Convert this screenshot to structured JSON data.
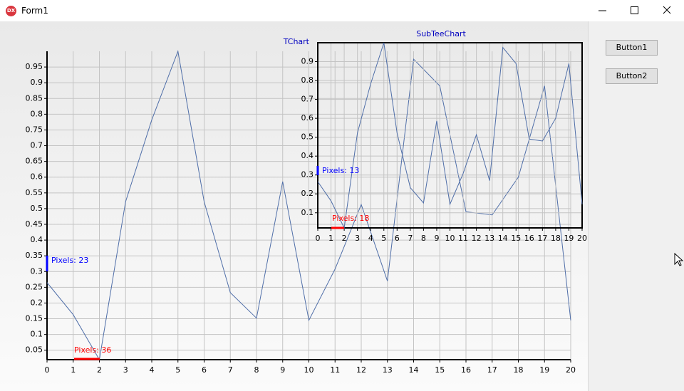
{
  "window": {
    "title": "Form1"
  },
  "buttons": [
    "Button1",
    "Button2"
  ],
  "chart_data": [
    {
      "type": "line",
      "title": "TChart",
      "x": [
        0,
        1,
        2,
        3,
        4,
        5,
        6,
        7,
        8,
        9,
        10,
        11,
        12,
        13,
        14,
        15,
        16,
        17,
        18,
        19,
        20
      ],
      "series": [
        {
          "color": "#4f6ea8",
          "values": [
            0.265,
            0.163,
            0.02,
            0.522,
            0.782,
            1.0,
            0.522,
            0.233,
            0.152,
            0.586,
            0.145,
            0.308,
            0.513,
            0.27,
            0.975,
            0.89,
            0.49,
            0.48,
            0.6,
            0.89,
            0.145
          ]
        }
      ],
      "xlim": [
        0,
        20
      ],
      "ylim": [
        0.02,
        1.0
      ],
      "xticks": [
        0,
        1,
        2,
        3,
        4,
        5,
        6,
        7,
        8,
        9,
        10,
        11,
        12,
        13,
        14,
        15,
        16,
        17,
        18,
        19,
        20
      ],
      "yticks": [
        0.05,
        0.1,
        0.15,
        0.2,
        0.25,
        0.3,
        0.35,
        0.4,
        0.45,
        0.5,
        0.55,
        0.6,
        0.65,
        0.7,
        0.75,
        0.8,
        0.85,
        0.9,
        0.95
      ],
      "grid": true,
      "annotations": [
        {
          "text": "Pixels: 23",
          "color": "#0000ff"
        },
        {
          "text": "Pixels: 36",
          "color": "#ff0000"
        }
      ]
    },
    {
      "type": "line",
      "title": "SubTeeChart",
      "x": [
        0,
        1,
        2,
        3,
        4,
        5,
        6,
        7,
        8,
        9,
        10,
        11,
        12,
        13,
        14,
        15,
        16,
        17,
        18,
        19,
        20
      ],
      "series": [
        {
          "color": "#4f6ea8",
          "values": [
            0.265,
            0.163,
            0.02,
            0.522,
            0.782,
            1.0,
            0.522,
            0.233,
            0.152,
            0.586,
            0.145,
            0.308,
            0.513,
            0.27,
            0.975,
            0.89,
            0.49,
            0.48,
            0.6,
            0.89,
            0.145
          ]
        }
      ],
      "xlim": [
        0,
        20
      ],
      "ylim": [
        0.02,
        1.0
      ],
      "xticks": [
        0,
        1,
        2,
        3,
        4,
        5,
        6,
        7,
        8,
        9,
        10,
        11,
        12,
        13,
        14,
        15,
        16,
        17,
        18,
        19,
        20
      ],
      "yticks": [
        0.1,
        0.2,
        0.3,
        0.4,
        0.5,
        0.6,
        0.7,
        0.8,
        0.9
      ],
      "grid": true,
      "annotations": [
        {
          "text": "Pixels: 13",
          "color": "#0000ff"
        },
        {
          "text": "Pixels: 18",
          "color": "#ff0000"
        }
      ]
    }
  ]
}
